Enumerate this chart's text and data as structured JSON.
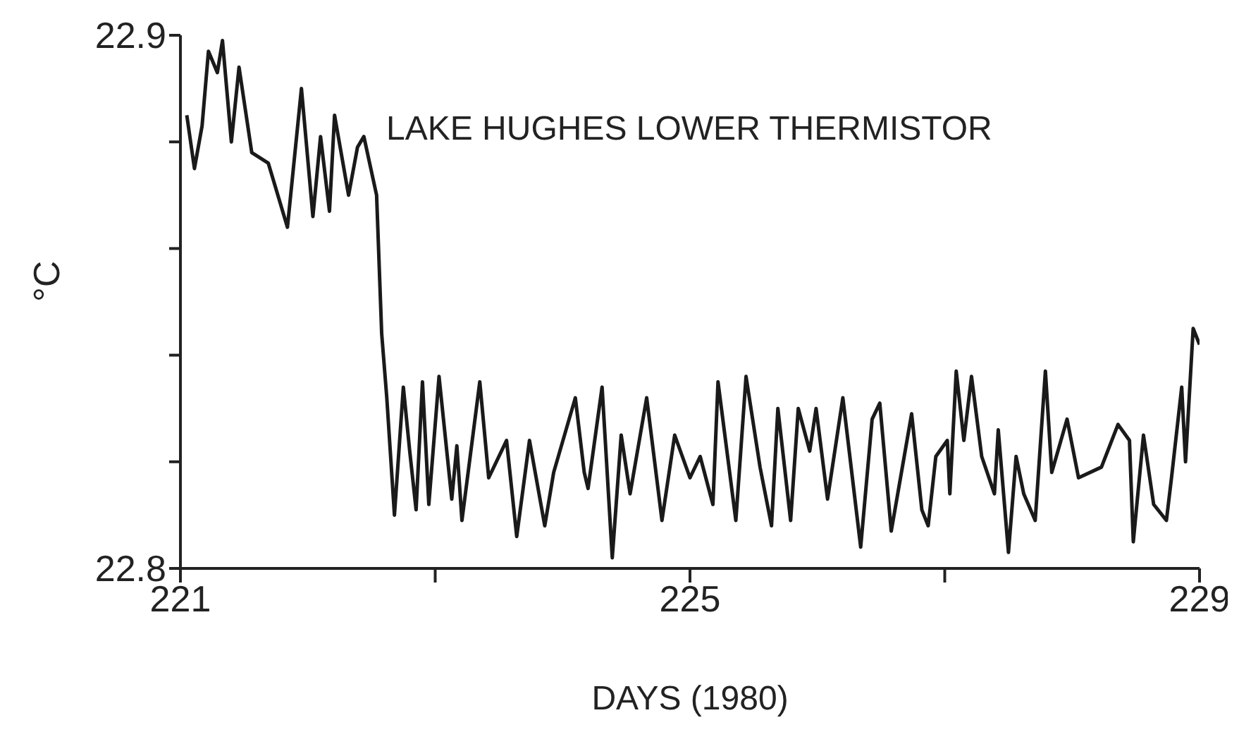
{
  "chart_data": {
    "type": "line",
    "title": "LAKE HUGHES LOWER THERMISTOR",
    "xlabel": "DAYS (1980)",
    "ylabel": "°C",
    "xlim": [
      221,
      229
    ],
    "xticks": [
      221,
      {
        "value": 223,
        "label": null
      },
      225,
      {
        "value": 227,
        "label": null
      },
      229
    ],
    "ylim": [
      22.8,
      22.9
    ],
    "yticks": [
      22.8,
      {
        "value": 22.82,
        "label": null
      },
      {
        "value": 22.84,
        "label": null
      },
      {
        "value": 22.86,
        "label": null
      },
      {
        "value": 22.88,
        "label": null
      },
      22.9
    ],
    "grid": false,
    "marker": "none",
    "line_style": "solid",
    "series": [
      {
        "color": "#1a1a1a",
        "x": [
          221.05,
          221.11,
          221.17,
          221.22,
          221.29,
          221.33,
          221.4,
          221.46,
          221.56,
          221.69,
          221.84,
          221.95,
          222.04,
          222.1,
          222.17,
          222.21,
          222.32,
          222.39,
          222.44,
          222.54,
          222.58,
          222.62,
          222.68,
          222.75,
          222.8,
          222.85,
          222.9,
          222.95,
          223.03,
          223.13,
          223.17,
          223.21,
          223.35,
          223.42,
          223.56,
          223.64,
          223.74,
          223.86,
          223.93,
          224.1,
          224.17,
          224.2,
          224.31,
          224.39,
          224.46,
          224.53,
          224.66,
          224.78,
          224.88,
          225.0,
          225.08,
          225.18,
          225.22,
          225.36,
          225.44,
          225.55,
          225.64,
          225.69,
          225.79,
          225.85,
          225.94,
          225.99,
          226.08,
          226.2,
          226.34,
          226.43,
          226.49,
          226.58,
          226.74,
          226.82,
          226.87,
          226.93,
          227.02,
          227.04,
          227.09,
          227.15,
          227.21,
          227.29,
          227.39,
          227.42,
          227.5,
          227.56,
          227.62,
          227.71,
          227.79,
          227.84,
          227.96,
          228.05,
          228.23,
          228.36,
          228.45,
          228.48,
          228.56,
          228.64,
          228.74,
          228.78,
          228.86,
          228.89,
          228.95,
          229.0
        ],
        "values": [
          22.885,
          22.875,
          22.883,
          22.897,
          22.893,
          22.899,
          22.88,
          22.894,
          22.878,
          22.876,
          22.864,
          22.89,
          22.866,
          22.881,
          22.867,
          22.885,
          22.87,
          22.879,
          22.881,
          22.87,
          22.844,
          22.832,
          22.81,
          22.834,
          22.822,
          22.811,
          22.835,
          22.812,
          22.836,
          22.813,
          22.823,
          22.809,
          22.835,
          22.817,
          22.824,
          22.806,
          22.824,
          22.808,
          22.818,
          22.832,
          22.818,
          22.815,
          22.834,
          22.802,
          22.825,
          22.814,
          22.832,
          22.809,
          22.825,
          22.817,
          22.821,
          22.812,
          22.835,
          22.809,
          22.836,
          22.819,
          22.808,
          22.83,
          22.809,
          22.83,
          22.822,
          22.83,
          22.813,
          22.832,
          22.804,
          22.828,
          22.831,
          22.807,
          22.829,
          22.811,
          22.808,
          22.821,
          22.824,
          22.814,
          22.837,
          22.824,
          22.836,
          22.821,
          22.814,
          22.826,
          22.803,
          22.821,
          22.814,
          22.809,
          22.837,
          22.818,
          22.828,
          22.817,
          22.819,
          22.827,
          22.824,
          22.805,
          22.825,
          22.812,
          22.809,
          22.817,
          22.834,
          22.82,
          22.845,
          22.842
        ]
      }
    ]
  }
}
